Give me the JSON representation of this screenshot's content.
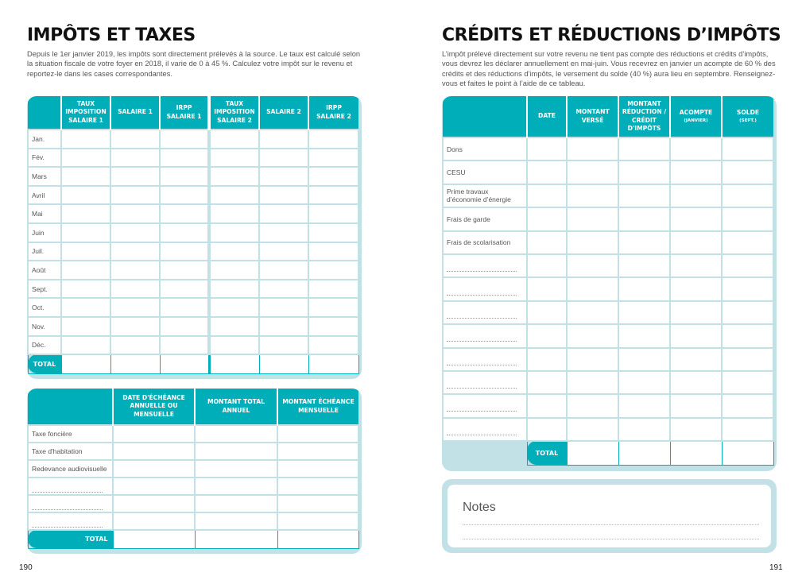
{
  "left_page": {
    "title": "IMPÔTS ET TAXES",
    "intro": "Depuis le 1er janvier 2019, les impôts sont directement prélevés à la source. Le taux est calculé selon la situation fiscale de votre foyer en 2018, il varie de 0 à 45 %. Calculez votre impôt sur le revenu et reportez-le dans les cases correspondantes.",
    "income_table": {
      "headers": [
        "",
        "TAUX IMPOSITION SALAIRE 1",
        "SALAIRE 1",
        "IRPP SALAIRE 1",
        "TAUX IMPOSITION SALAIRE 2",
        "SALAIRE 2",
        "IRPP SALAIRE 2"
      ],
      "rows": [
        "Jan.",
        "Fév.",
        "Mars",
        "Avril",
        "Mai",
        "Juin",
        "Juil.",
        "Août",
        "Sept.",
        "Oct.",
        "Nov.",
        "Déc."
      ],
      "total_label": "TOTAL"
    },
    "tax_table": {
      "headers": [
        "",
        "DATE D'ÉCHÉANCE ANNUELLE OU MENSUELLE",
        "MONTANT TOTAL ANNUEL",
        "MONTANT ÉCHÉANCE MENSUELLE"
      ],
      "rows": [
        "Taxe foncière",
        "Taxe d'habitation",
        "Redevance audiovisuelle",
        "",
        "",
        ""
      ],
      "total_label": "TOTAL"
    },
    "page_number": "190"
  },
  "right_page": {
    "title": "CRÉDITS ET RÉDUCTIONS D’IMPÔTS",
    "intro": "L’impôt prélevé directement sur votre revenu ne tient pas compte des réductions et crédits d’impôts, vous devrez les déclarer annuellement en mai-juin. Vous recevrez en janvier un acompte de 60 % des crédits et des réductions d’impôts, le versement du solde (40 %) aura lieu en septembre. Renseignez-vous et faites le point à l’aide de ce tableau.",
    "credits_table": {
      "headers": [
        {
          "label": "",
          "sub": ""
        },
        {
          "label": "DATE",
          "sub": ""
        },
        {
          "label": "MONTANT VERSÉ",
          "sub": ""
        },
        {
          "label": "MONTANT RÉDUCTION / CRÉDIT D'IMPÔTS",
          "sub": ""
        },
        {
          "label": "ACOMPTE",
          "sub": "(JANVIER)"
        },
        {
          "label": "SOLDE",
          "sub": "(SEPT.)"
        }
      ],
      "rows": [
        "Dons",
        "CESU",
        "Prime travaux d’économie d’énergie",
        "Frais de garde",
        "Frais de scolarisation",
        "",
        "",
        "",
        "",
        "",
        "",
        "",
        ""
      ],
      "total_label": "TOTAL"
    },
    "notes_label": "Notes",
    "page_number": "191"
  },
  "colors": {
    "accent": "#00aeb9",
    "frame": "#c2e1e6"
  }
}
